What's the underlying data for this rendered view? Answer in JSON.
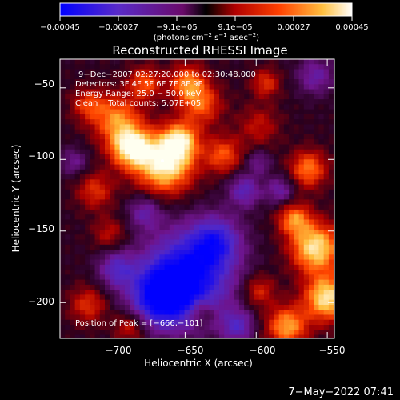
{
  "chart_data": {
    "type": "heatmap",
    "title": "Reconstructed RHESSI Image",
    "xlabel": "Heliocentric X (arcsec)",
    "ylabel": "Heliocentric Y (arcsec)",
    "xlim": [
      -738,
      -545
    ],
    "ylim": [
      -225,
      -30
    ],
    "x_ticks": [
      -700,
      -650,
      -600,
      -550
    ],
    "x_tick_labels": [
      "−700",
      "−650",
      "−600",
      "−550"
    ],
    "y_ticks": [
      -50,
      -100,
      -150,
      -200
    ],
    "y_tick_labels": [
      "−50",
      "−100",
      "−150",
      "−200"
    ],
    "colorbar": {
      "range": [
        -0.00045,
        0.00045
      ],
      "tick_labels": [
        "−0.00045",
        "−0.00027",
        "−9.1e−05",
        "9.1e−05",
        "0.00027",
        "0.00045"
      ],
      "unit_line1": "(photons cm",
      "unit_sup1": "−2",
      "unit_line2": " s",
      "unit_sup2": "−1",
      "unit_line3": " asec",
      "unit_sup3": "−2",
      "unit_close": ")"
    },
    "annotations": {
      "time": "9−Dec−2007 02:27:20.000 to 02:30:48.000",
      "detectors": "Detectors: 3F 4F 5F 6F 7F 8F 9F",
      "energy": "Energy Range: 25.0 − 50.0 keV",
      "clean": "Clean    Total counts: 5.07E+05",
      "peak": "Position of Peak = [−666,−101]"
    },
    "peak": [
      -666,
      -101
    ],
    "footer_date": "7−May−2022 07:41",
    "color_scale": [
      "#0000ff",
      "#5a2bc8",
      "#8a1a9a",
      "#000000",
      "#c00000",
      "#ff6000",
      "#ffc040",
      "#ffffff"
    ]
  }
}
